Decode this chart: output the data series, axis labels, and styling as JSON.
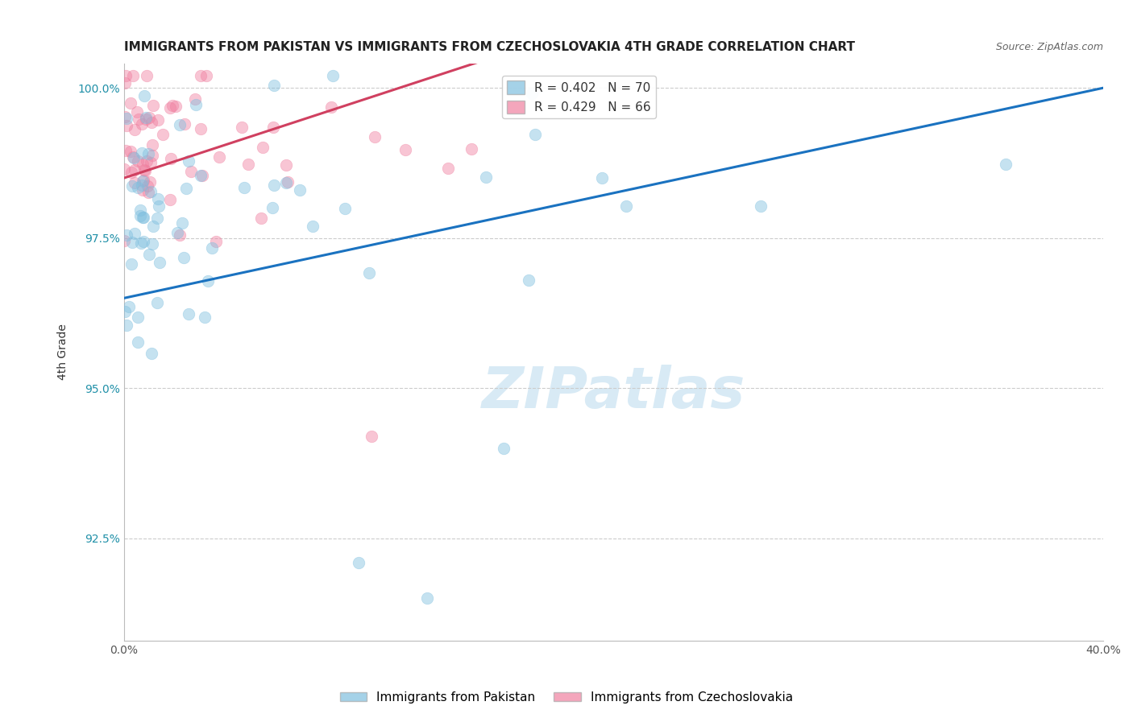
{
  "title": "IMMIGRANTS FROM PAKISTAN VS IMMIGRANTS FROM CZECHOSLOVAKIA 4TH GRADE CORRELATION CHART",
  "source": "Source: ZipAtlas.com",
  "ylabel": "4th Grade",
  "xlabel_pakistan": "Immigrants from Pakistan",
  "xlabel_czechoslovakia": "Immigrants from Czechoslovakia",
  "R_pakistan": 0.402,
  "N_pakistan": 70,
  "R_czechoslovakia": 0.429,
  "N_czechoslovakia": 66,
  "color_pakistan": "#7fbfdf",
  "color_czechoslovakia": "#f080a0",
  "trendline_pakistan": "#1a72c0",
  "trendline_czechoslovakia": "#d04060",
  "xlim": [
    0.0,
    0.4
  ],
  "ylim": [
    0.908,
    1.004
  ],
  "yticks": [
    0.925,
    0.95,
    0.975,
    1.0
  ],
  "ytick_labels": [
    "92.5%",
    "95.0%",
    "97.5%",
    "100.0%"
  ],
  "xtick_labels": [
    "0.0%",
    "",
    "",
    "",
    "40.0%"
  ],
  "background_color": "#ffffff",
  "grid_color": "#cccccc",
  "title_fontsize": 11,
  "legend_fontsize": 11,
  "legend_R_color": "#1a72c0",
  "legend_N_color": "#e05080",
  "watermark_color": "#d8eaf5",
  "watermark_text": "ZIPatlas"
}
